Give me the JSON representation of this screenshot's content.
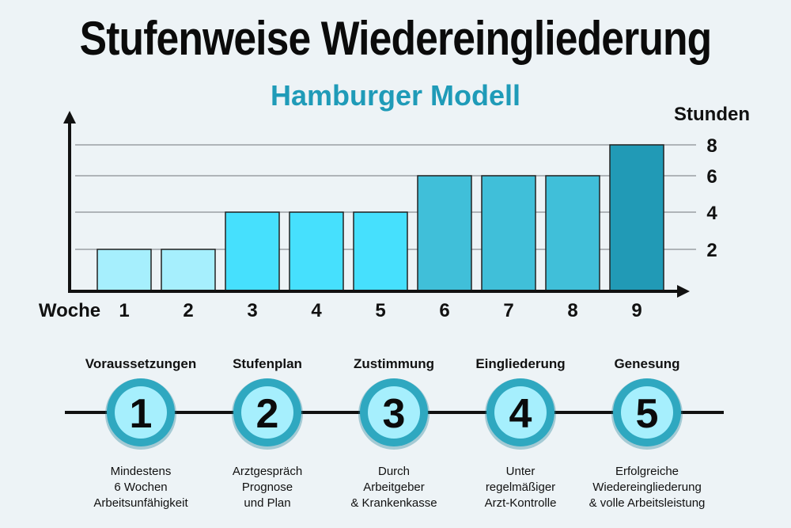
{
  "title": "Stufenweise Wiedereingliederung",
  "subtitle": "Hamburger Modell",
  "chart_data": {
    "type": "bar",
    "xlabel": "Woche",
    "ylabel": "Stunden",
    "categories": [
      "1",
      "2",
      "3",
      "4",
      "5",
      "6",
      "7",
      "8",
      "9"
    ],
    "values": [
      2,
      2,
      4,
      4,
      4,
      6,
      6,
      6,
      8
    ],
    "yticks": [
      "2",
      "4",
      "6",
      "8"
    ],
    "ylim": [
      0,
      8
    ],
    "grid": true,
    "colors": [
      "#a6effd",
      "#a6effd",
      "#46e0fd",
      "#46e0fd",
      "#46e0fd",
      "#40bfd9",
      "#40bfd9",
      "#40bfd9",
      "#219ab6"
    ]
  },
  "steps": [
    {
      "number": "1",
      "heading": "Voraussetzungen",
      "lines": [
        "Mindestens",
        "6 Wochen",
        "Arbeitsunfähigkeit"
      ]
    },
    {
      "number": "2",
      "heading": "Stufenplan",
      "lines": [
        "Arztgespräch",
        "Prognose",
        "und Plan"
      ]
    },
    {
      "number": "3",
      "heading": "Zustimmung",
      "lines": [
        "Durch",
        "Arbeitgeber",
        "& Krankenkasse"
      ]
    },
    {
      "number": "4",
      "heading": "Eingliederung",
      "lines": [
        "Unter",
        "regelmäßiger",
        "Arzt-Kontrolle"
      ]
    },
    {
      "number": "5",
      "heading": "Genesung",
      "lines": [
        "Erfolgreiche",
        "Wiedereingliederung",
        "& volle Arbeitsleistung"
      ]
    }
  ],
  "colors": {
    "accent": "#1f9bb8",
    "ring": "#2fa8c0",
    "circle_fill": "#a6effd"
  }
}
